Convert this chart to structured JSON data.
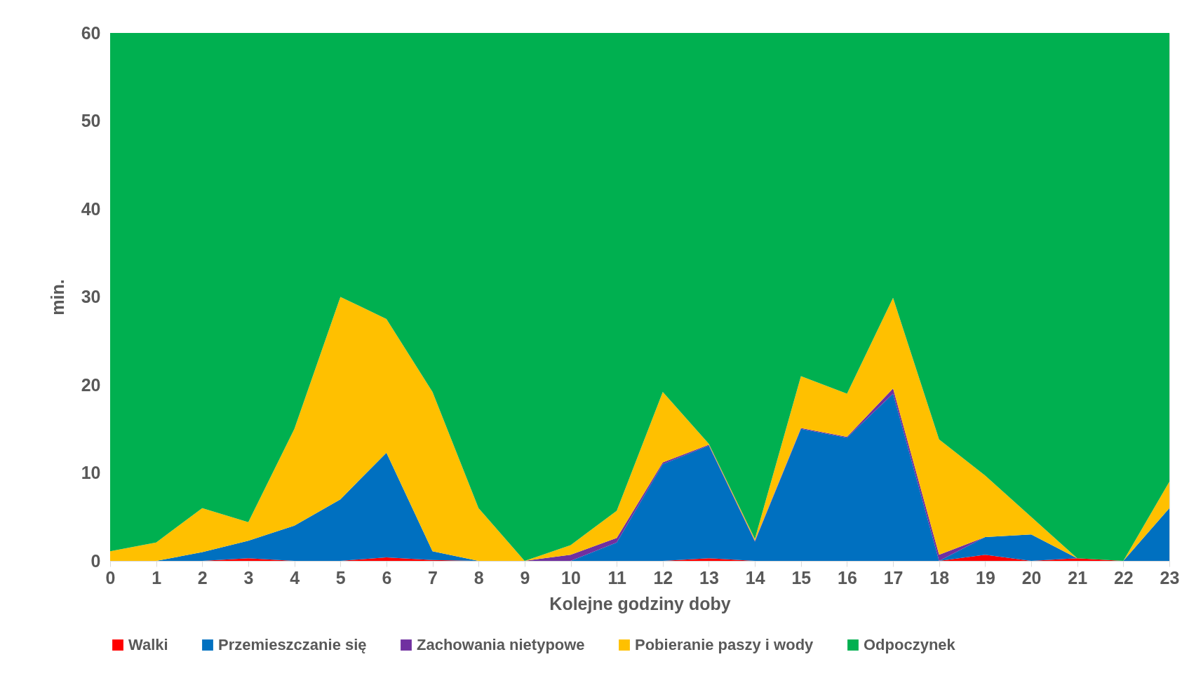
{
  "chart_data": {
    "type": "area",
    "stacked": true,
    "xlabel": "Kolejne godziny doby",
    "ylabel": "min.",
    "x": [
      0,
      1,
      2,
      3,
      4,
      5,
      6,
      7,
      8,
      9,
      10,
      11,
      12,
      13,
      14,
      15,
      16,
      17,
      18,
      19,
      20,
      21,
      22,
      23
    ],
    "xlim": [
      0,
      23
    ],
    "xticks": [
      0,
      1,
      2,
      3,
      4,
      5,
      6,
      7,
      8,
      9,
      10,
      11,
      12,
      13,
      14,
      15,
      16,
      17,
      18,
      19,
      20,
      21,
      22,
      23
    ],
    "ylim": [
      0,
      60
    ],
    "yticks": [
      0,
      10,
      20,
      30,
      40,
      50,
      60
    ],
    "grid": false,
    "legend": "bottom",
    "series": [
      {
        "name": "Walki",
        "color": "#ff0000",
        "values": [
          0,
          0,
          0,
          0.3,
          0,
          0,
          0.4,
          0.1,
          0,
          0,
          0,
          0,
          0,
          0.3,
          0,
          0,
          0,
          0,
          0,
          0.7,
          0,
          0.3,
          0,
          0
        ]
      },
      {
        "name": "Przemieszczanie się",
        "color": "#0070c0",
        "values": [
          0,
          0,
          1.0,
          2.0,
          4.0,
          7.0,
          11.9,
          1.0,
          0,
          0,
          0,
          2.1,
          11.0,
          12.8,
          2.2,
          15.0,
          14.0,
          19.0,
          0,
          2.0,
          3.0,
          0,
          0,
          6.0
        ]
      },
      {
        "name": "Zachowania nietypowe",
        "color": "#7030a0",
        "values": [
          0,
          0,
          0,
          0,
          0,
          0,
          0,
          0,
          0,
          0,
          0.7,
          0.5,
          0.2,
          0.1,
          0.1,
          0.1,
          0.1,
          0.6,
          0.7,
          0,
          0,
          0,
          0,
          0
        ]
      },
      {
        "name": "Pobieranie paszy i wody",
        "color": "#ffc000",
        "values": [
          1.1,
          2.1,
          5.0,
          2.1,
          11.0,
          23.0,
          15.2,
          18.1,
          6.0,
          0,
          1.1,
          3.1,
          8.0,
          0.1,
          0.2,
          5.9,
          4.9,
          10.3,
          13.1,
          7.0,
          2.0,
          0,
          0,
          3.0
        ]
      },
      {
        "name": "Odpoczynek",
        "color": "#00b050",
        "values": [
          58.9,
          57.9,
          54.0,
          55.6,
          45.0,
          30.0,
          32.5,
          40.8,
          54.0,
          60,
          58.2,
          54.3,
          40.8,
          46.7,
          57.5,
          39.0,
          41.0,
          30.1,
          46.2,
          50.3,
          55.0,
          59.7,
          60,
          51.0
        ]
      }
    ]
  }
}
